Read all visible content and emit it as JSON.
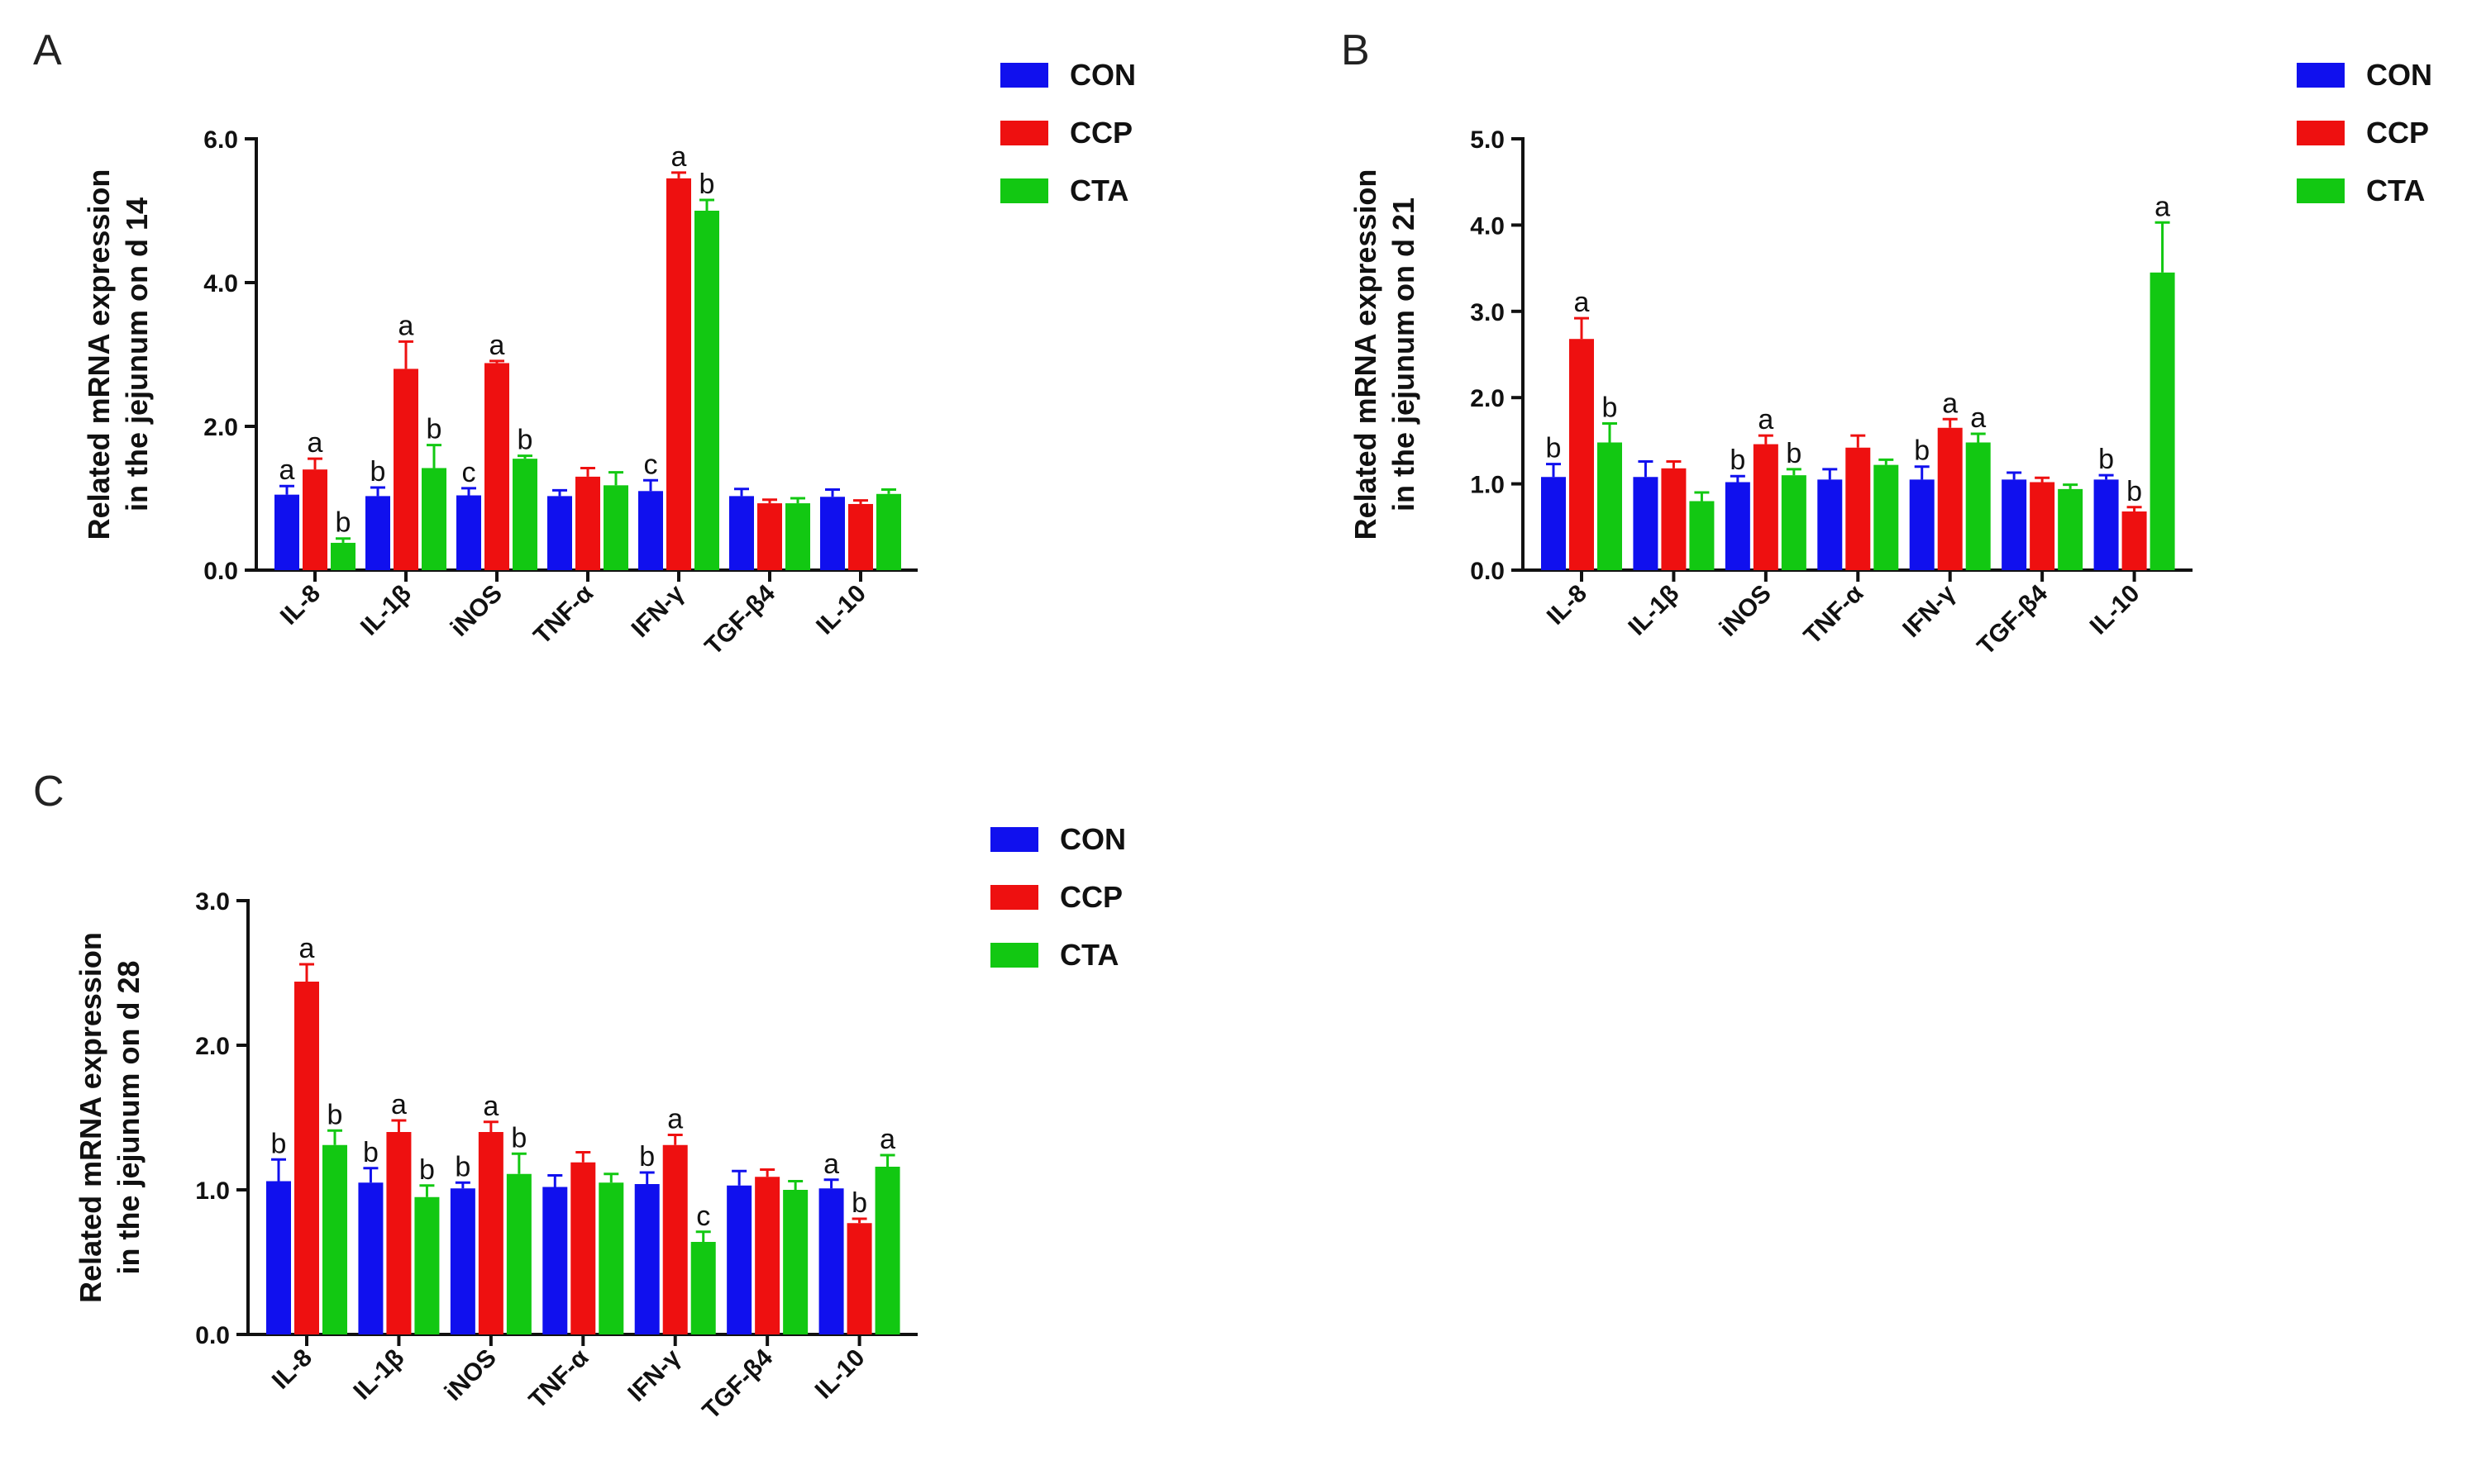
{
  "colors": {
    "CON": "#1010ee",
    "CCP": "#ee1010",
    "CTA": "#12c812"
  },
  "chart_data": [
    {
      "type": "bar",
      "panel": "A",
      "ylabel": [
        "Related mRNA expression",
        "in the jejunum on d 14"
      ],
      "categories": [
        "IL-8",
        "IL-1β",
        "iNOS",
        "TNF-α",
        "IFN-γ",
        "TGF-β4",
        "IL-10"
      ],
      "ylim": [
        0,
        6.0
      ],
      "yticks": [
        "0.0",
        "2.0",
        "4.0",
        "6.0"
      ],
      "legend": [
        "CON",
        "CCP",
        "CTA"
      ],
      "series": [
        {
          "name": "CON",
          "values": [
            1.05,
            1.03,
            1.04,
            1.03,
            1.1,
            1.03,
            1.02
          ],
          "errors": [
            0.12,
            0.12,
            0.1,
            0.08,
            0.15,
            0.1,
            0.1
          ],
          "labels": [
            "a",
            "b",
            "c",
            "",
            "c",
            "",
            ""
          ]
        },
        {
          "name": "CCP",
          "values": [
            1.4,
            2.8,
            2.88,
            1.3,
            5.45,
            0.93,
            0.92
          ],
          "errors": [
            0.15,
            0.38,
            0.03,
            0.12,
            0.08,
            0.05,
            0.05
          ],
          "labels": [
            "a",
            "a",
            "a",
            "",
            "a",
            "",
            ""
          ]
        },
        {
          "name": "CTA",
          "values": [
            0.38,
            1.42,
            1.55,
            1.18,
            5.0,
            0.93,
            1.06
          ],
          "errors": [
            0.06,
            0.32,
            0.04,
            0.18,
            0.15,
            0.07,
            0.06
          ],
          "labels": [
            "b",
            "b",
            "b",
            "",
            "b",
            "",
            ""
          ]
        }
      ]
    },
    {
      "type": "bar",
      "panel": "B",
      "ylabel": [
        "Related mRNA expression",
        "in the jejunum on d 21"
      ],
      "categories": [
        "IL-8",
        "IL-1β",
        "iNOS",
        "TNF-α",
        "IFN-γ",
        "TGF-β4",
        "IL-10"
      ],
      "ylim": [
        0,
        5.0
      ],
      "yticks": [
        "0.0",
        "1.0",
        "2.0",
        "3.0",
        "4.0",
        "5.0"
      ],
      "legend": [
        "CON",
        "CCP",
        "CTA"
      ],
      "series": [
        {
          "name": "CON",
          "values": [
            1.08,
            1.08,
            1.02,
            1.05,
            1.05,
            1.05,
            1.05
          ],
          "errors": [
            0.15,
            0.18,
            0.07,
            0.12,
            0.15,
            0.08,
            0.05
          ],
          "labels": [
            "b",
            "",
            "b",
            "",
            "b",
            "",
            "b"
          ]
        },
        {
          "name": "CCP",
          "values": [
            2.68,
            1.18,
            1.46,
            1.42,
            1.65,
            1.02,
            0.68
          ],
          "errors": [
            0.24,
            0.08,
            0.1,
            0.14,
            0.1,
            0.05,
            0.05
          ],
          "labels": [
            "a",
            "",
            "a",
            "",
            "a",
            "",
            "b"
          ]
        },
        {
          "name": "CTA",
          "values": [
            1.48,
            0.8,
            1.1,
            1.22,
            1.48,
            0.94,
            3.45
          ],
          "errors": [
            0.22,
            0.1,
            0.07,
            0.06,
            0.1,
            0.05,
            0.58
          ],
          "labels": [
            "b",
            "",
            "b",
            "",
            "a",
            "",
            "a"
          ]
        }
      ]
    },
    {
      "type": "bar",
      "panel": "C",
      "ylabel": [
        "Related mRNA expression",
        "in the jejunum on d 28"
      ],
      "categories": [
        "IL-8",
        "IL-1β",
        "iNOS",
        "TNF-α",
        "IFN-γ",
        "TGF-β4",
        "IL-10"
      ],
      "ylim": [
        0,
        3.0
      ],
      "yticks": [
        "0.0",
        "1.0",
        "2.0",
        "3.0"
      ],
      "legend": [
        "CON",
        "CCP",
        "CTA"
      ],
      "series": [
        {
          "name": "CON",
          "values": [
            1.06,
            1.05,
            1.01,
            1.02,
            1.04,
            1.03,
            1.01
          ],
          "errors": [
            0.15,
            0.1,
            0.04,
            0.08,
            0.08,
            0.1,
            0.06
          ],
          "labels": [
            "b",
            "b",
            "b",
            "",
            "b",
            "",
            "a"
          ]
        },
        {
          "name": "CCP",
          "values": [
            2.44,
            1.4,
            1.4,
            1.19,
            1.31,
            1.09,
            0.77
          ],
          "errors": [
            0.12,
            0.08,
            0.07,
            0.07,
            0.07,
            0.05,
            0.03
          ],
          "labels": [
            "a",
            "a",
            "a",
            "",
            "a",
            "",
            "b"
          ]
        },
        {
          "name": "CTA",
          "values": [
            1.31,
            0.95,
            1.11,
            1.05,
            0.64,
            1.0,
            1.16
          ],
          "errors": [
            0.1,
            0.08,
            0.14,
            0.06,
            0.07,
            0.06,
            0.08
          ],
          "labels": [
            "b",
            "b",
            "b",
            "",
            "c",
            "",
            "a"
          ]
        }
      ]
    }
  ]
}
